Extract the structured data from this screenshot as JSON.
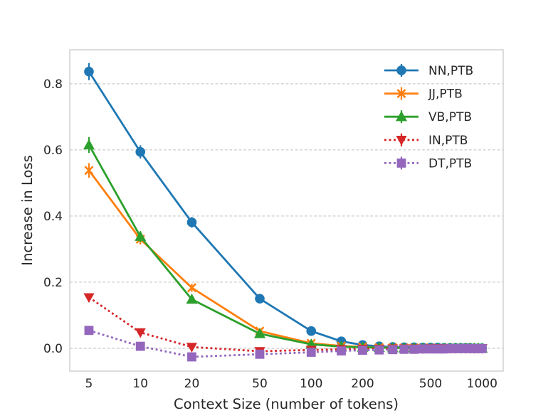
{
  "figure": {
    "background": "#ffffff",
    "text_color": "#262626",
    "grid_color": "#cccccc",
    "spine_color": "#cccccc"
  },
  "chart_data": {
    "type": "line",
    "title": "",
    "xlabel": "Context Size (number of tokens)",
    "ylabel": "Increase in Loss",
    "x_scale": "log",
    "xlim": [
      3.86,
      1330
    ],
    "ylim": [
      -0.069,
      0.903
    ],
    "x_ticks": [
      5,
      10,
      20,
      50,
      100,
      200,
      500,
      1000
    ],
    "y_ticks": [
      0.0,
      0.2,
      0.4,
      0.6,
      0.8
    ],
    "y_tick_labels": [
      "0.0",
      "0.2",
      "0.4",
      "0.6",
      "0.8"
    ],
    "grid": "horizontal-dashed",
    "legend_position": "upper-right",
    "x": [
      5,
      10,
      20,
      50,
      100,
      150,
      200,
      250,
      300,
      350,
      400,
      450,
      500,
      550,
      600,
      650,
      700,
      750,
      800,
      850,
      900,
      950,
      1000
    ],
    "series": [
      {
        "name": "NN,PTB",
        "color": "#1f77b4",
        "line_style": "solid",
        "marker": "circle",
        "values": [
          0.837,
          0.594,
          0.381,
          0.15,
          0.052,
          0.021,
          0.01,
          0.006,
          0.004,
          0.003,
          0.003,
          0.002,
          0.002,
          0.002,
          0.001,
          0.001,
          0.001,
          0.001,
          0.001,
          0.001,
          0.0,
          0.0,
          0.0
        ],
        "errors": [
          0.026,
          0.02,
          0.016,
          0.01,
          0.008,
          0.006,
          0.005,
          0.005,
          0.004,
          0.004,
          0.004,
          0.003,
          0.003,
          0.003,
          0.003,
          0.003,
          0.003,
          0.002,
          0.002,
          0.002,
          0.002,
          0.002,
          0.002
        ]
      },
      {
        "name": "JJ,PTB",
        "color": "#ff7f0e",
        "line_style": "solid",
        "marker": "x",
        "values": [
          0.538,
          0.33,
          0.183,
          0.052,
          0.015,
          0.007,
          0.004,
          0.002,
          0.002,
          0.001,
          0.001,
          0.001,
          0.001,
          0.0,
          0.0,
          0.0,
          0.0,
          0.0,
          0.0,
          0.0,
          0.0,
          0.0,
          0.0
        ],
        "errors": [
          0.022,
          0.016,
          0.012,
          0.008,
          0.006,
          0.005,
          0.004,
          0.004,
          0.003,
          0.003,
          0.003,
          0.003,
          0.003,
          0.002,
          0.002,
          0.002,
          0.002,
          0.002,
          0.002,
          0.002,
          0.002,
          0.002,
          0.002
        ]
      },
      {
        "name": "VB,PTB",
        "color": "#2ca02c",
        "line_style": "solid",
        "marker": "triangle-up",
        "values": [
          0.615,
          0.338,
          0.148,
          0.044,
          0.012,
          0.005,
          0.003,
          0.002,
          0.001,
          0.001,
          0.001,
          0.0,
          0.0,
          0.0,
          0.0,
          0.0,
          0.0,
          0.0,
          0.0,
          0.0,
          0.0,
          0.0,
          0.0
        ],
        "errors": [
          0.024,
          0.016,
          0.012,
          0.008,
          0.006,
          0.005,
          0.004,
          0.004,
          0.003,
          0.003,
          0.003,
          0.003,
          0.003,
          0.002,
          0.002,
          0.002,
          0.002,
          0.002,
          0.002,
          0.002,
          0.002,
          0.002,
          0.002
        ]
      },
      {
        "name": "IN,PTB",
        "color": "#d62728",
        "line_style": "dotted",
        "marker": "triangle-down",
        "values": [
          0.154,
          0.048,
          0.004,
          -0.009,
          -0.005,
          -0.003,
          -0.002,
          -0.002,
          -0.001,
          -0.001,
          -0.001,
          -0.001,
          0.0,
          0.0,
          0.0,
          0.0,
          0.0,
          0.0,
          0.0,
          0.0,
          0.0,
          0.0,
          0.0
        ],
        "errors": [
          0.012,
          0.008,
          0.006,
          0.005,
          0.004,
          0.004,
          0.003,
          0.003,
          0.003,
          0.003,
          0.002,
          0.002,
          0.002,
          0.002,
          0.002,
          0.002,
          0.002,
          0.002,
          0.002,
          0.002,
          0.002,
          0.002,
          0.002
        ]
      },
      {
        "name": "DT,PTB",
        "color": "#9467bd",
        "line_style": "dotted",
        "marker": "square",
        "values": [
          0.054,
          0.006,
          -0.026,
          -0.018,
          -0.012,
          -0.008,
          -0.006,
          -0.005,
          -0.004,
          -0.003,
          -0.003,
          -0.002,
          -0.002,
          -0.002,
          -0.002,
          -0.001,
          -0.001,
          -0.001,
          -0.001,
          -0.001,
          -0.001,
          -0.001,
          -0.001
        ],
        "errors": [
          0.008,
          0.006,
          0.005,
          0.004,
          0.004,
          0.003,
          0.003,
          0.003,
          0.002,
          0.002,
          0.002,
          0.002,
          0.002,
          0.002,
          0.002,
          0.002,
          0.002,
          0.002,
          0.002,
          0.002,
          0.002,
          0.002,
          0.002
        ]
      }
    ]
  }
}
